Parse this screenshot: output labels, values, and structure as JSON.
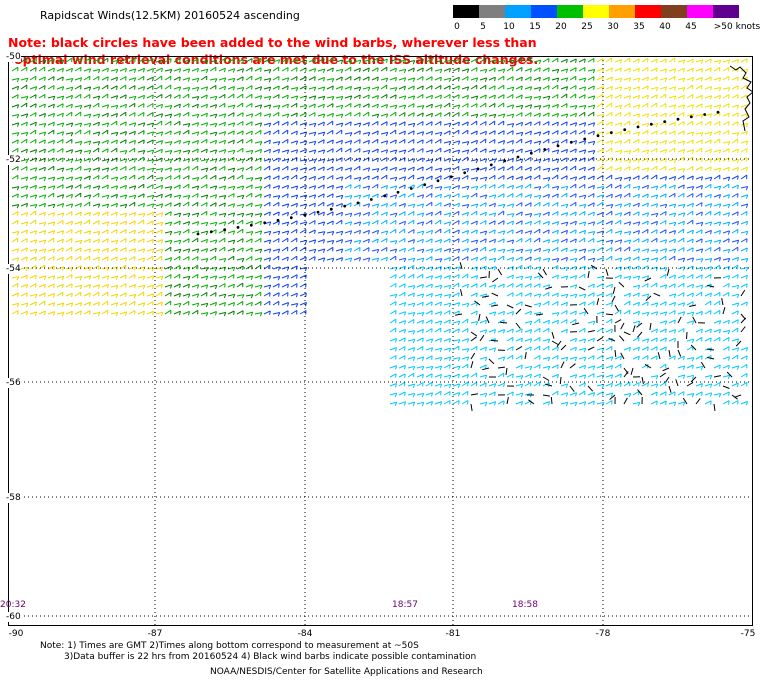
{
  "title": "Rapidscat Winds(12.5KM) 20160524 ascending",
  "note": {
    "line1": "Note: black circles have been added to the wind barbs, wherever less than",
    "line2": "optimal wind retrieval conditions are met due to the ISS altitude changes."
  },
  "speed_scale": {
    "labels": [
      "0",
      "5",
      "10",
      "15",
      "20",
      "25",
      "30",
      "35",
      "40",
      "45",
      ">50 knots"
    ],
    "colors": [
      "#000000",
      "#7f7f7f",
      "#00a0ff",
      "#0050ff",
      "#00c000",
      "#ffff00",
      "#ffa000",
      "#ff0000",
      "#804020",
      "#ff00ff",
      "#600090"
    ]
  },
  "map": {
    "lat_labels": [
      "-50",
      "-52",
      "-54",
      "-56",
      "-58",
      "-60"
    ],
    "lon_labels": [
      "-90",
      "-87",
      "-84",
      "-81",
      "-78",
      "-75"
    ],
    "times": [
      "20:32",
      "18:57",
      "18:58"
    ],
    "grid": "dotted"
  },
  "footer": {
    "line1": "Note: 1) Times are GMT 2)Times along bottom correspond to measurement at ~50S",
    "line2": "3)Data buffer is 22 hrs from 20160524 4) Black wind barbs indicate possible contamination",
    "line3": "NOAA/NESDIS/Center for Satellite Applications and Research"
  }
}
